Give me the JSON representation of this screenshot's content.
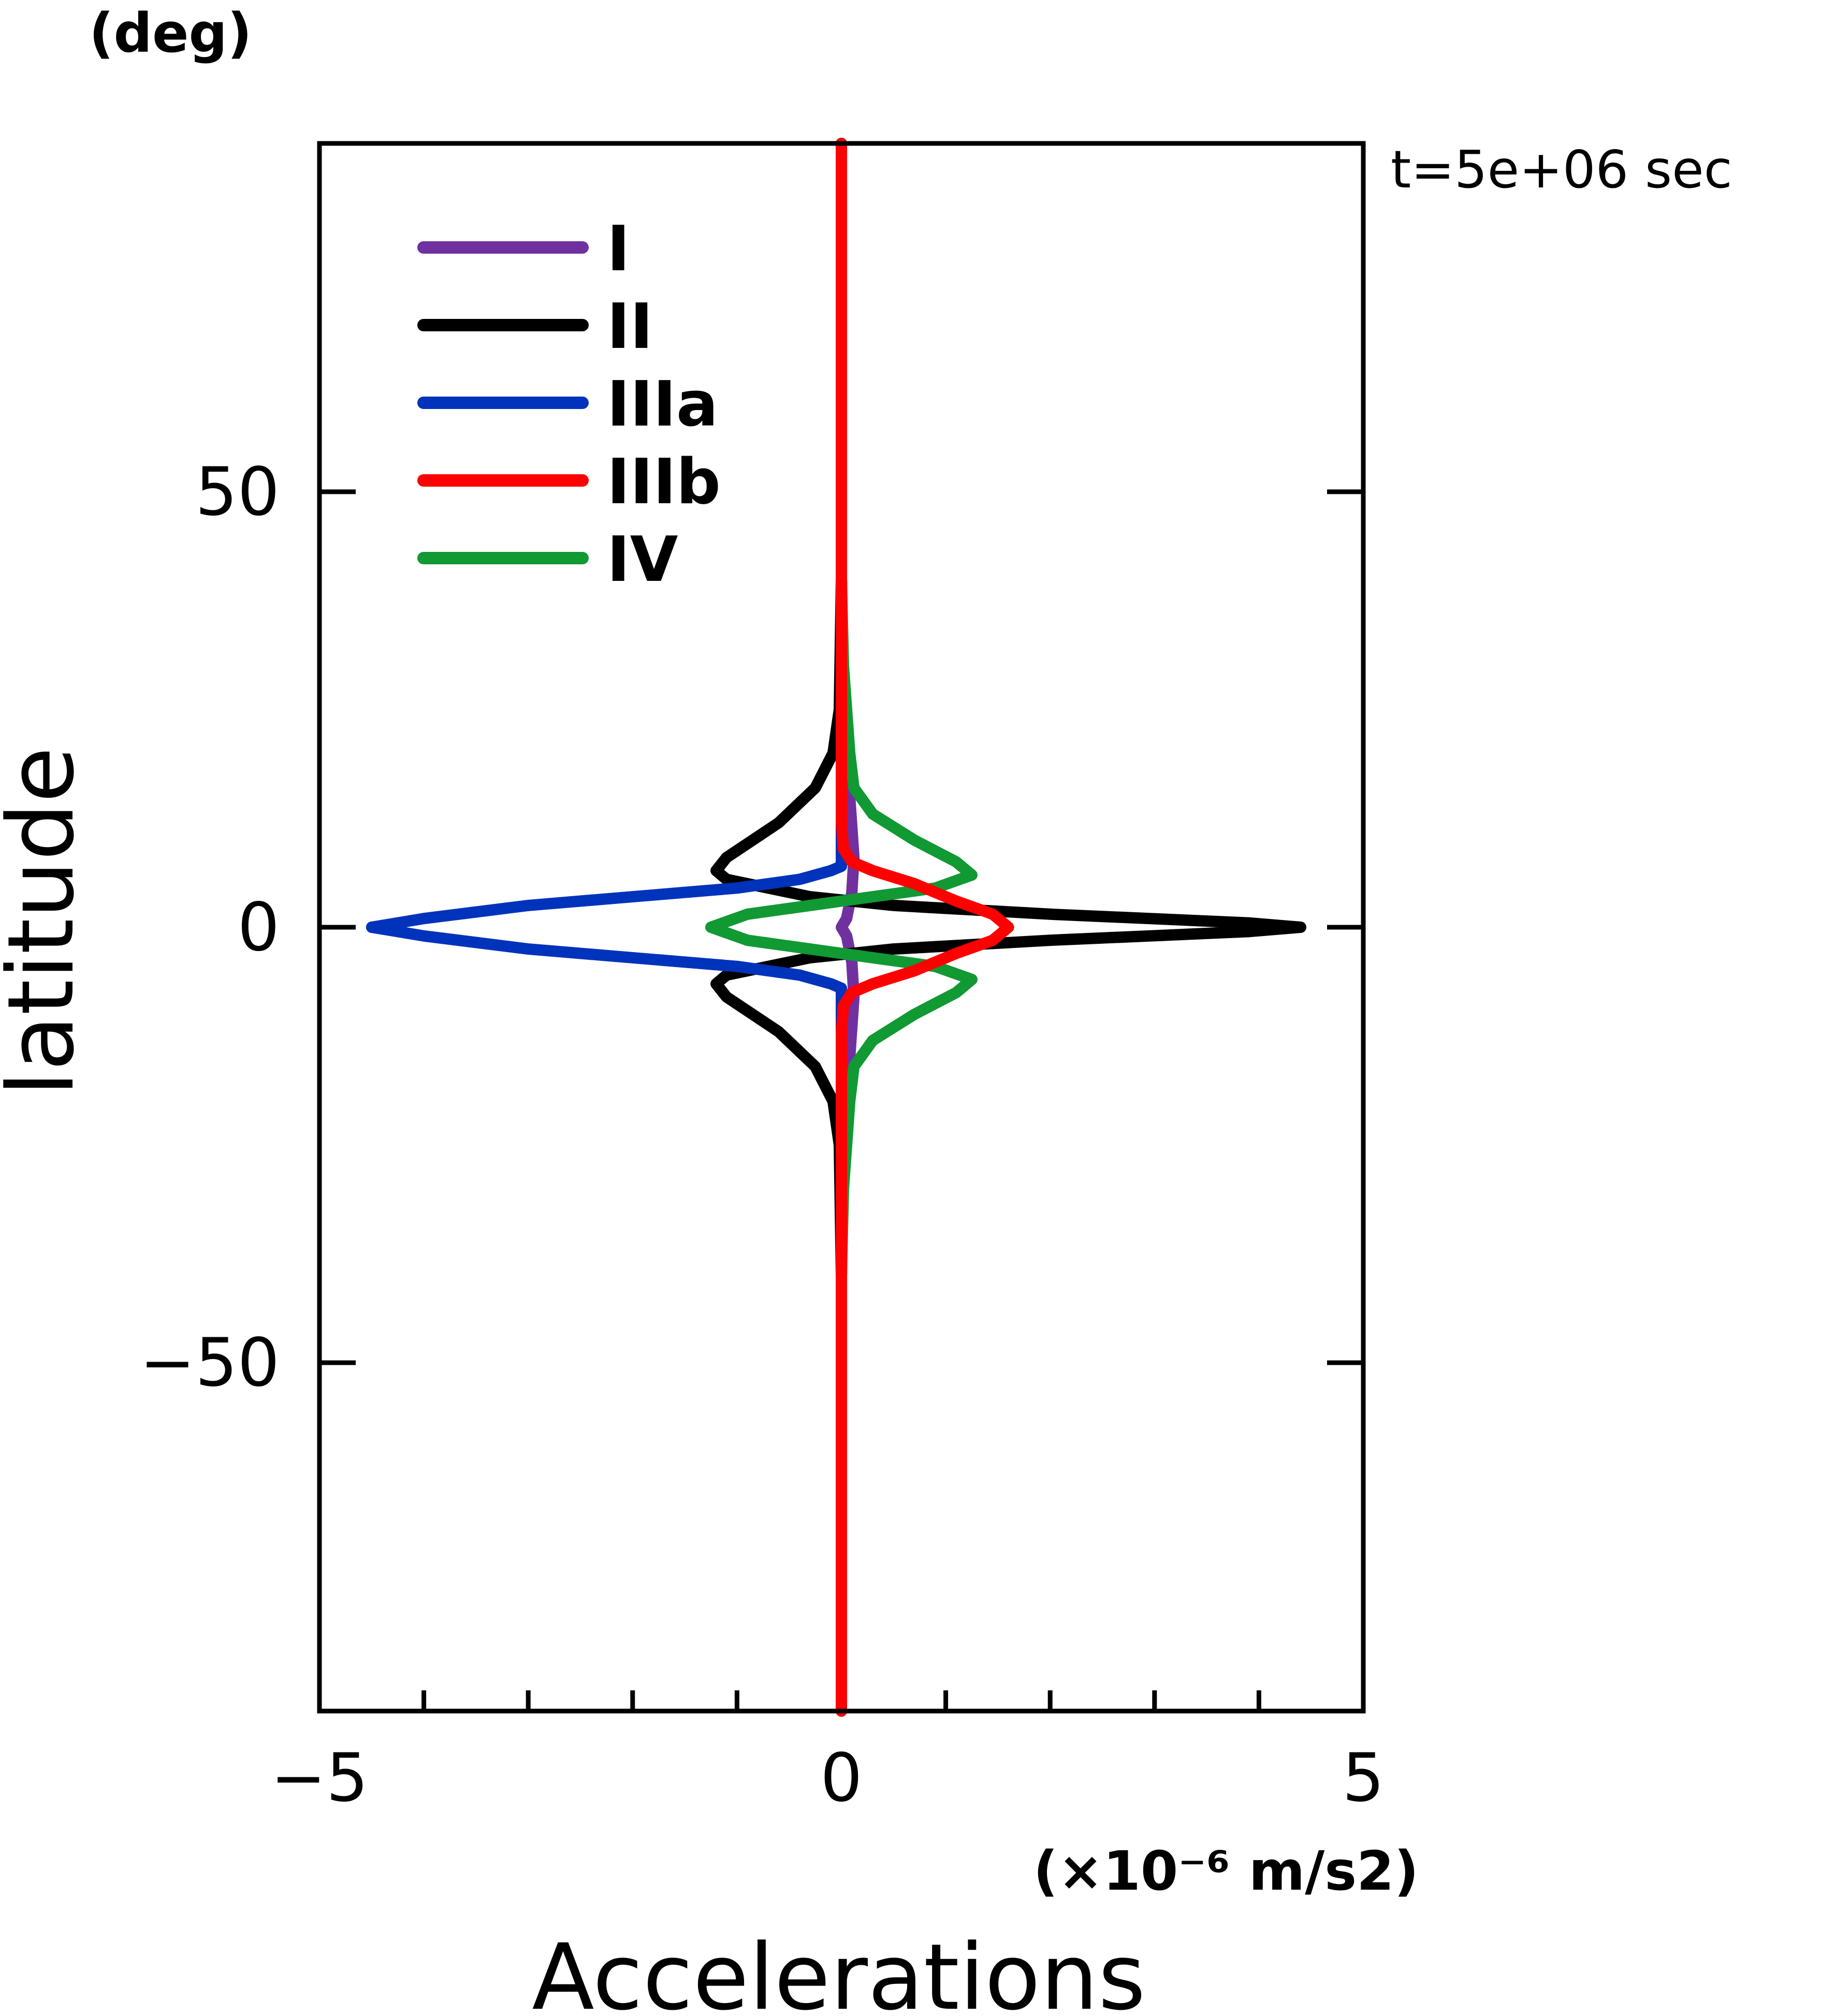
{
  "chart_data": {
    "type": "line",
    "title": "",
    "annotation": "t=5e+06 sec",
    "xlabel": "Accelerations",
    "xunit": "(×10⁻⁶ m/s2)",
    "ylabel": "latitude",
    "yunit": "(deg)",
    "xlim": [
      -5,
      5
    ],
    "ylim": [
      -90,
      90
    ],
    "x_ticks_major": [
      -5,
      0,
      5
    ],
    "x_tick_labels": [
      "−5",
      "0",
      "5"
    ],
    "x_ticks_minor": [
      -4,
      -3,
      -2,
      -1,
      1,
      2,
      3,
      4
    ],
    "y_ticks_major": [
      -50,
      0,
      50
    ],
    "y_tick_labels": [
      "−50",
      "0",
      "50"
    ],
    "legend_position": "top-left",
    "series": [
      {
        "name": "I",
        "color": "#7030a0",
        "points": [
          [
            0,
            -90
          ],
          [
            0,
            -40
          ],
          [
            0.02,
            -25
          ],
          [
            0.08,
            -15
          ],
          [
            0.12,
            -8
          ],
          [
            0.1,
            -4
          ],
          [
            0.05,
            -1
          ],
          [
            0,
            0
          ],
          [
            0.05,
            1
          ],
          [
            0.1,
            4
          ],
          [
            0.12,
            8
          ],
          [
            0.08,
            15
          ],
          [
            0.02,
            25
          ],
          [
            0,
            40
          ],
          [
            0,
            90
          ]
        ]
      },
      {
        "name": "II",
        "color": "#000000",
        "points": [
          [
            0,
            -90
          ],
          [
            0,
            -40
          ],
          [
            -0.02,
            -25
          ],
          [
            -0.08,
            -20
          ],
          [
            -0.25,
            -16
          ],
          [
            -0.6,
            -12
          ],
          [
            -1.1,
            -8
          ],
          [
            -1.2,
            -6.5
          ],
          [
            -1.1,
            -5.5
          ],
          [
            -0.7,
            -4.5
          ],
          [
            -0.3,
            -3.5
          ],
          [
            0.5,
            -2.5
          ],
          [
            2.0,
            -1.5
          ],
          [
            3.9,
            -0.5
          ],
          [
            4.4,
            0
          ],
          [
            3.9,
            0.5
          ],
          [
            2.0,
            1.5
          ],
          [
            0.5,
            2.5
          ],
          [
            -0.3,
            3.5
          ],
          [
            -0.7,
            4.5
          ],
          [
            -1.1,
            5.5
          ],
          [
            -1.2,
            6.5
          ],
          [
            -1.1,
            8
          ],
          [
            -0.6,
            12
          ],
          [
            -0.25,
            16
          ],
          [
            -0.08,
            20
          ],
          [
            -0.02,
            25
          ],
          [
            0,
            40
          ],
          [
            0,
            90
          ]
        ]
      },
      {
        "name": "IIIa",
        "color": "#0033bb",
        "points": [
          [
            0,
            -90
          ],
          [
            0,
            -7
          ],
          [
            -0.1,
            -6.5
          ],
          [
            -0.4,
            -5.5
          ],
          [
            -1.0,
            -4.5
          ],
          [
            -2.0,
            -3.5
          ],
          [
            -3.0,
            -2.5
          ],
          [
            -4.0,
            -1
          ],
          [
            -4.5,
            0
          ],
          [
            -4.0,
            1
          ],
          [
            -3.0,
            2.5
          ],
          [
            -2.0,
            3.5
          ],
          [
            -1.0,
            4.5
          ],
          [
            -0.4,
            5.5
          ],
          [
            -0.1,
            6.5
          ],
          [
            0,
            7
          ],
          [
            0,
            90
          ]
        ]
      },
      {
        "name": "IIIb",
        "color": "#ff0000",
        "points": [
          [
            0,
            -90
          ],
          [
            0,
            -20
          ],
          [
            0,
            -12
          ],
          [
            0.02,
            -9
          ],
          [
            0.1,
            -7.5
          ],
          [
            0.3,
            -6.5
          ],
          [
            0.7,
            -5
          ],
          [
            1.1,
            -3
          ],
          [
            1.45,
            -1.5
          ],
          [
            1.6,
            0
          ],
          [
            1.45,
            1.5
          ],
          [
            1.1,
            3
          ],
          [
            0.7,
            5
          ],
          [
            0.3,
            6.5
          ],
          [
            0.1,
            7.5
          ],
          [
            0.02,
            9
          ],
          [
            0,
            12
          ],
          [
            0,
            20
          ],
          [
            0,
            90
          ]
        ]
      },
      {
        "name": "IV",
        "color": "#119933",
        "points": [
          [
            0,
            -90
          ],
          [
            0,
            -40
          ],
          [
            0.02,
            -30
          ],
          [
            0.08,
            -20
          ],
          [
            0.12,
            -16
          ],
          [
            0.3,
            -13
          ],
          [
            0.7,
            -10
          ],
          [
            1.1,
            -7.5
          ],
          [
            1.25,
            -6
          ],
          [
            0.9,
            -4.5
          ],
          [
            0,
            -3
          ],
          [
            -0.9,
            -1.5
          ],
          [
            -1.25,
            0
          ],
          [
            -0.9,
            1.5
          ],
          [
            0,
            3
          ],
          [
            0.9,
            4.5
          ],
          [
            1.25,
            6
          ],
          [
            1.1,
            7.5
          ],
          [
            0.7,
            10
          ],
          [
            0.3,
            13
          ],
          [
            0.12,
            16
          ],
          [
            0.08,
            20
          ],
          [
            0.02,
            30
          ],
          [
            0,
            40
          ],
          [
            0,
            90
          ]
        ]
      }
    ]
  }
}
